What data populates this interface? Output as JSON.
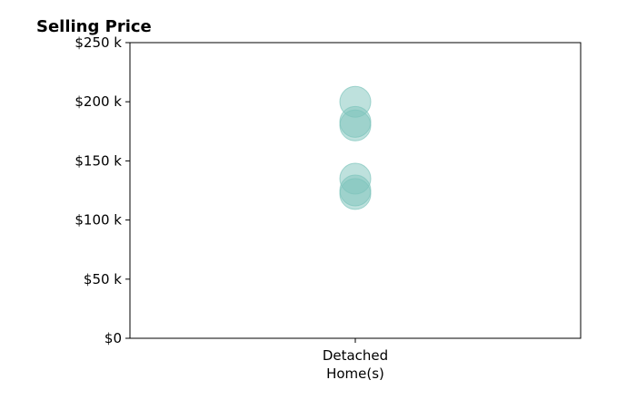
{
  "chart_data": {
    "type": "scatter",
    "title": "Selling Price",
    "xlabel": "",
    "ylabel": "",
    "categories": [
      "Detached\nHome(s)"
    ],
    "ylim": [
      0,
      250000
    ],
    "yticks": [
      {
        "value": 0,
        "label": "$0"
      },
      {
        "value": 50000,
        "label": "$50 k"
      },
      {
        "value": 100000,
        "label": "$100 k"
      },
      {
        "value": 150000,
        "label": "$150 k"
      },
      {
        "value": 200000,
        "label": "$200 k"
      },
      {
        "value": 250000,
        "label": "$250 k"
      }
    ],
    "series": [
      {
        "category": "Detached\nHome(s)",
        "values": [
          200000,
          183000,
          180000,
          135000,
          125000,
          122000
        ]
      }
    ],
    "grid": false,
    "legend": "none",
    "point_color": "#7ec4bc"
  }
}
